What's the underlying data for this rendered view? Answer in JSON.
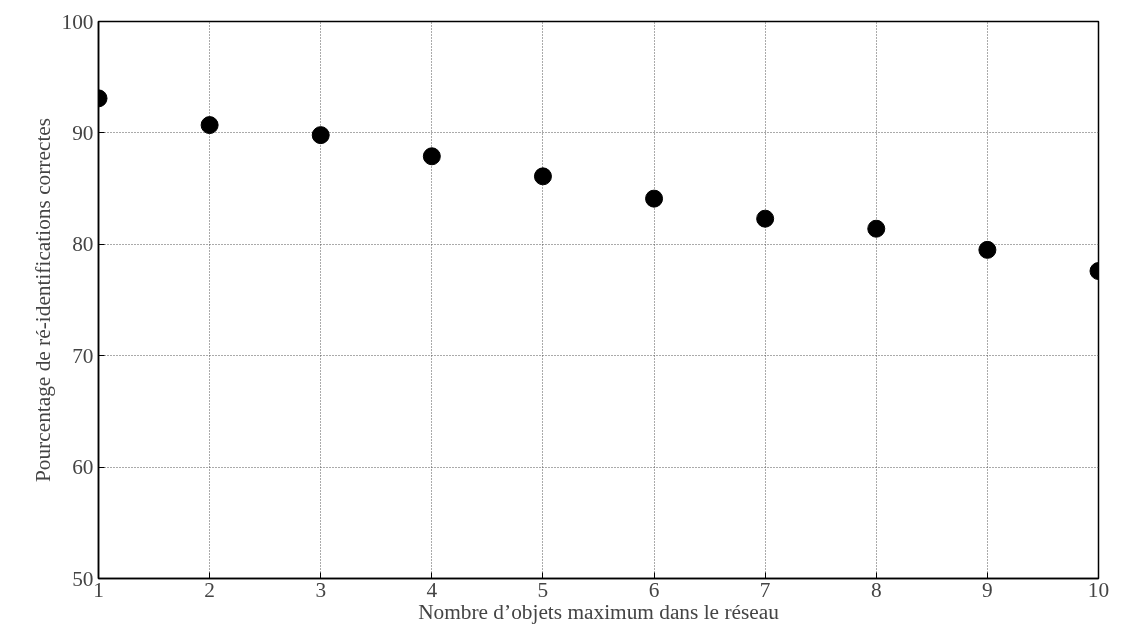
{
  "chart_data": {
    "type": "scatter",
    "xlabel": "Nombre d’objets maximum dans le réseau",
    "ylabel": "Pourcentage de ré-identifications correctes",
    "x": [
      1,
      2,
      3,
      4,
      5,
      6,
      7,
      8,
      9,
      10
    ],
    "series": [
      {
        "color": "#000000",
        "values": [
          93.1,
          90.7,
          89.8,
          87.9,
          86.1,
          84.1,
          82.3,
          81.4,
          79.5,
          77.6
        ]
      }
    ],
    "xlim": [
      1,
      10
    ],
    "ylim": [
      50,
      100
    ],
    "xticks": [
      1,
      2,
      3,
      4,
      5,
      6,
      7,
      8,
      9,
      10
    ],
    "yticks": [
      50,
      60,
      70,
      80,
      90,
      100
    ],
    "grid": true,
    "marker": "circle"
  }
}
